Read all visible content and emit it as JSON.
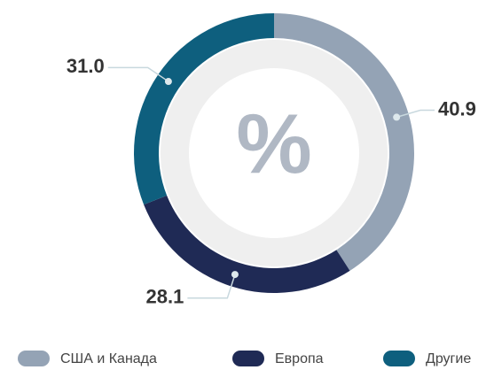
{
  "chart_data": {
    "type": "donut",
    "center_label": "%",
    "categories": [
      "США и Канада",
      "Европа",
      "Другие"
    ],
    "values": [
      40.9,
      28.1,
      31.0
    ],
    "value_labels": [
      "40.9",
      "28.1",
      "31.0"
    ],
    "colors": [
      "#94a3b5",
      "#1f2a55",
      "#0e5f7e"
    ],
    "legend": "bottom"
  }
}
